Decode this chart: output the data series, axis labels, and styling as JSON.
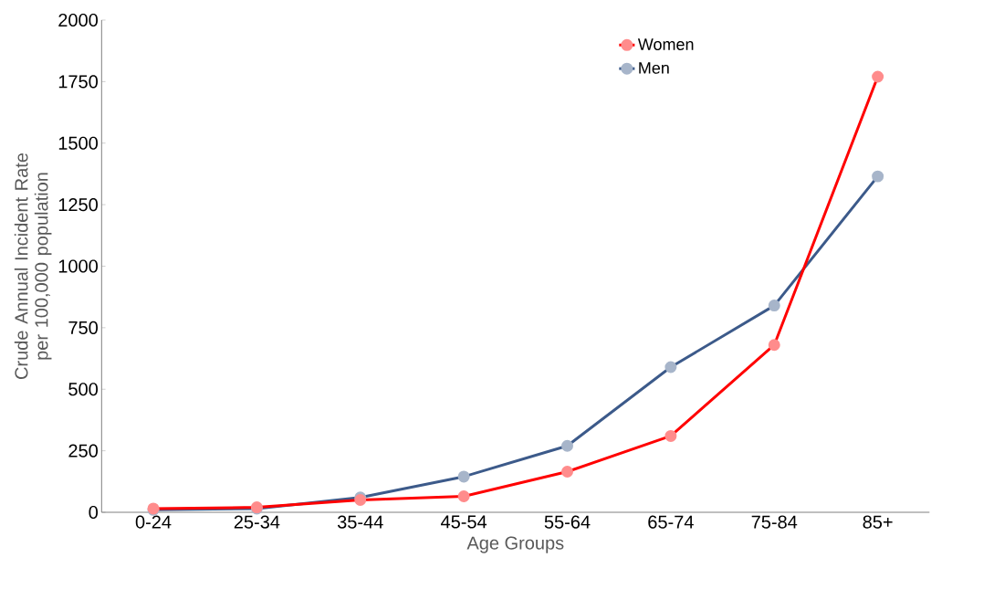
{
  "chart_data": {
    "type": "line",
    "xlabel": "Age Groups",
    "ylabel": "Crude Annual Incident Rate per 100,000 population",
    "categories": [
      "0-24",
      "25-34",
      "35-44",
      "45-54",
      "55-64",
      "65-74",
      "75-84",
      "85+"
    ],
    "series": [
      {
        "name": "Women",
        "color": "#ff0000",
        "values": [
          15,
          20,
          50,
          65,
          165,
          310,
          680,
          1770
        ]
      },
      {
        "name": "Men",
        "color": "#3c5a8a",
        "values": [
          10,
          15,
          60,
          145,
          270,
          590,
          840,
          1365
        ]
      }
    ],
    "ylim": [
      0,
      2000
    ],
    "yticks": [
      0,
      250,
      500,
      750,
      1000,
      1250,
      1500,
      1750,
      2000
    ],
    "marker": "circle",
    "legend": "top right",
    "grid": false
  }
}
